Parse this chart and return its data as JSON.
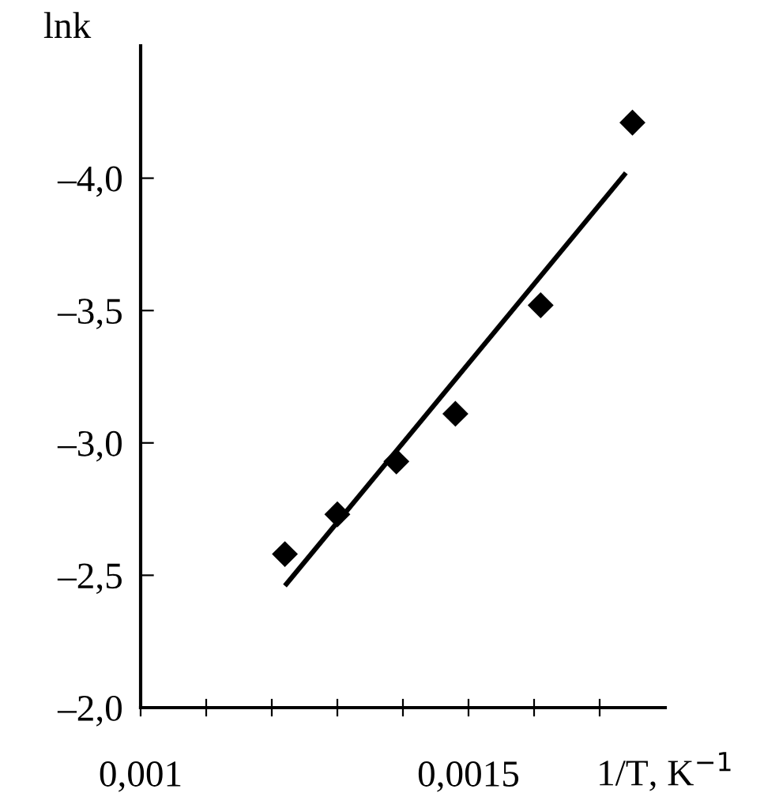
{
  "chart_data": {
    "type": "scatter",
    "xlabel": "1/T, K$^{−1}$",
    "ylabel": "lnk",
    "marker": "diamond",
    "grid": false,
    "xlim": [
      0.001,
      0.0018
    ],
    "xticks": [
      {
        "value": 0.001,
        "label": "0,001"
      },
      {
        "value": 0.0011,
        "label": null
      },
      {
        "value": 0.0012,
        "label": null
      },
      {
        "value": 0.0013,
        "label": null
      },
      {
        "value": 0.0014,
        "label": null
      },
      {
        "value": 0.0015,
        "label": "0,0015"
      },
      {
        "value": 0.0016,
        "label": null
      },
      {
        "value": 0.0017,
        "label": null
      }
    ],
    "ylim": [
      -2.0,
      -4.5
    ],
    "yticks": [
      {
        "value": -2.0,
        "label": "–2,0"
      },
      {
        "value": -2.5,
        "label": "–2,5"
      },
      {
        "value": -3.0,
        "label": "–3,0"
      },
      {
        "value": -3.5,
        "label": "–3,5"
      },
      {
        "value": -4.0,
        "label": "–4,0"
      }
    ],
    "series": [
      {
        "color": "#000000",
        "x": [
          0.00122,
          0.0013,
          0.00139,
          0.00148,
          0.00161,
          0.00175
        ],
        "values": [
          -2.58,
          -2.73,
          -2.93,
          -3.11,
          -3.52,
          -4.21
        ]
      },
      {
        "type": "line",
        "color": "#000000",
        "marker": "none",
        "x": [
          0.00122,
          0.00174
        ],
        "values": [
          -2.46,
          -4.02
        ]
      }
    ]
  }
}
